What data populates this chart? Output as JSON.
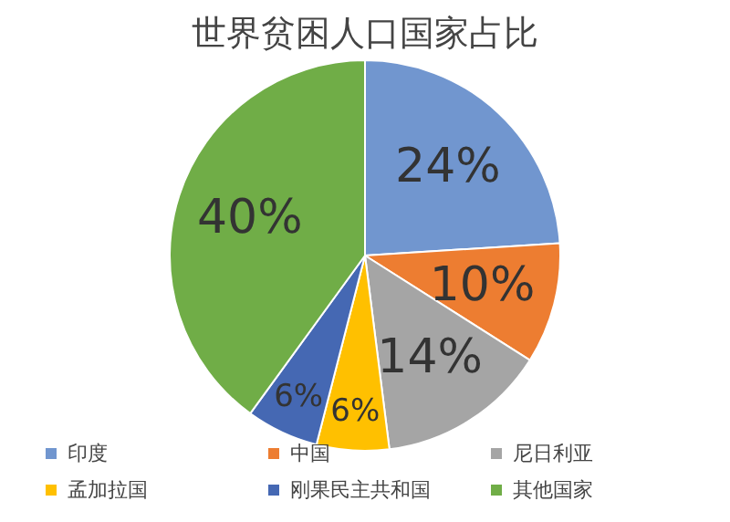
{
  "chart_data": {
    "type": "pie",
    "title": "世界贫困人口国家占比",
    "categories": [
      "印度",
      "中国",
      "尼日利亚",
      "孟加拉国",
      "刚果民主共和国",
      "其他国家"
    ],
    "values": [
      24,
      10,
      14,
      6,
      6,
      40
    ],
    "value_labels": [
      "24%",
      "10%",
      "14%",
      "6%",
      "6%",
      "40%"
    ],
    "colors": [
      "#7196cf",
      "#ed7d31",
      "#a5a5a5",
      "#ffc000",
      "#4568b3",
      "#70ad47"
    ],
    "legend": "bottom"
  }
}
